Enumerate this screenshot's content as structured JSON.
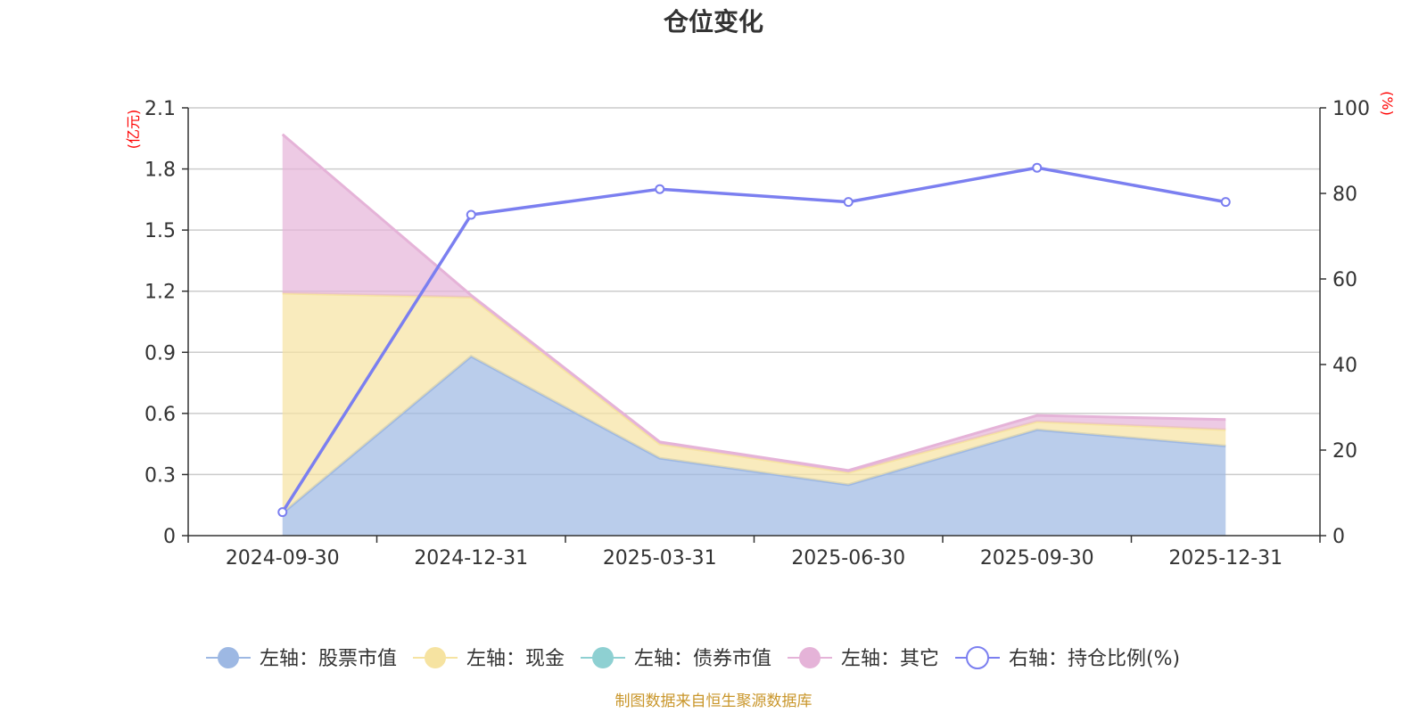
{
  "chart_data": {
    "type": "area",
    "title": "仓位变化",
    "categories": [
      "2024-09-30",
      "2024-12-31",
      "2025-03-31",
      "2025-06-30",
      "2025-09-30",
      "2025-12-31"
    ],
    "left_axis": {
      "unit": "(亿元)",
      "ylim": [
        0,
        2.1
      ],
      "ticks": [
        "0",
        "0.3",
        "0.6",
        "0.9",
        "1.2",
        "1.5",
        "1.8",
        "2.1"
      ]
    },
    "right_axis": {
      "unit": "(%)",
      "ylim": [
        0,
        100
      ],
      "ticks": [
        "0",
        "20",
        "40",
        "60",
        "80",
        "100"
      ]
    },
    "series": [
      {
        "name": "左轴：股票市值",
        "axis": "left",
        "kind": "stacked-area",
        "color": "#9db8e3",
        "values": [
          0.11,
          0.88,
          0.38,
          0.25,
          0.52,
          0.44
        ]
      },
      {
        "name": "左轴：现金",
        "axis": "left",
        "kind": "stacked-area",
        "color": "#f6e3a1",
        "values": [
          1.08,
          0.29,
          0.07,
          0.06,
          0.04,
          0.08
        ]
      },
      {
        "name": "左轴：债券市值",
        "axis": "left",
        "kind": "stacked-area",
        "color": "#8ed0d2",
        "values": [
          0,
          0,
          0,
          0,
          0,
          0
        ]
      },
      {
        "name": "左轴：其它",
        "axis": "left",
        "kind": "stacked-area",
        "color": "#e5b3d8",
        "values": [
          0.78,
          0.01,
          0.01,
          0.01,
          0.03,
          0.05
        ]
      },
      {
        "name": "右轴：持仓比例(%)",
        "axis": "right",
        "kind": "line",
        "color": "#7b7ff0",
        "values": [
          5.5,
          75,
          81,
          78,
          86,
          78
        ]
      }
    ],
    "legend_position": "bottom",
    "grid": true
  },
  "footer": {
    "source": "制图数据来自恒生聚源数据库"
  }
}
